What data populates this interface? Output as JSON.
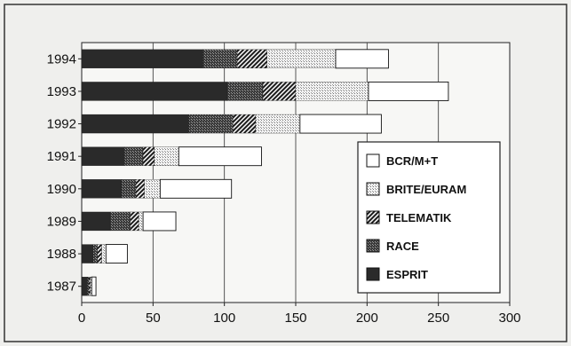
{
  "chart_data": {
    "type": "bar",
    "orientation": "horizontal",
    "stacked": true,
    "categories": [
      "1994",
      "1993",
      "1992",
      "1991",
      "1990",
      "1989",
      "1988",
      "1987"
    ],
    "series": [
      {
        "name": "ESPRIT",
        "values": [
          85,
          102,
          75,
          30,
          28,
          20,
          8,
          4
        ]
      },
      {
        "name": "RACE",
        "values": [
          24,
          25,
          31,
          13,
          10,
          14,
          3,
          1
        ]
      },
      {
        "name": "TELEMATIK",
        "values": [
          21,
          23,
          16,
          8,
          6,
          6,
          3,
          1
        ]
      },
      {
        "name": "BRITE/EURAM",
        "values": [
          48,
          51,
          31,
          17,
          11,
          3,
          3,
          1
        ]
      },
      {
        "name": "BCR/M+T",
        "values": [
          37,
          56,
          57,
          58,
          50,
          23,
          15,
          3
        ]
      }
    ],
    "x_ticks": [
      0,
      50,
      100,
      150,
      200,
      250,
      300
    ],
    "xlim": [
      0,
      300
    ],
    "grid": "vertical",
    "legend_position": "right",
    "title": "",
    "xlabel": "",
    "ylabel": "",
    "colors": {
      "ESPRIT": "#2a2a2a",
      "RACE": "#5a5a5a",
      "TELEMATIK": "#777777",
      "BRITE/EURAM": "#cfcfcf",
      "BCR/M+T": "#ffffff"
    }
  }
}
